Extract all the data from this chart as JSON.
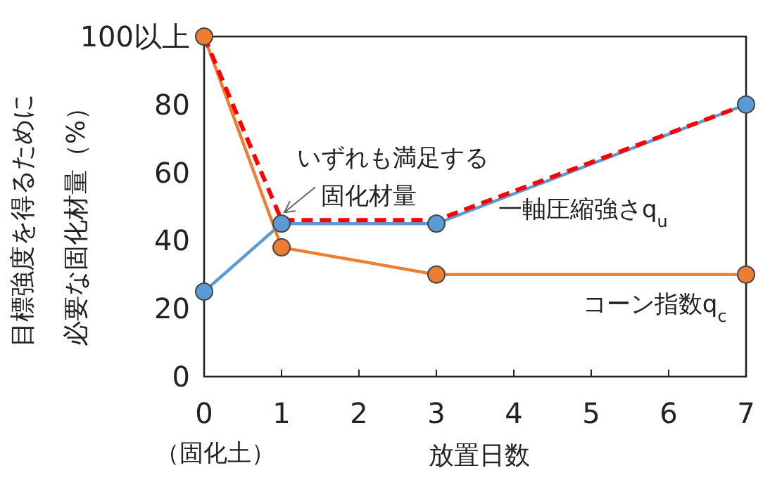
{
  "chart_data": {
    "type": "line",
    "xlabel": "放置日数",
    "ylabel": [
      "目標強度を得るために",
      "必要な固化材量（%）"
    ],
    "x": [
      0,
      1,
      3,
      7
    ],
    "series": [
      {
        "name": "一軸圧縮強さq$_{u}$",
        "color": "#5b9bd5",
        "values": [
          25,
          45,
          45,
          80
        ],
        "marker": "circle",
        "line_style": "solid"
      },
      {
        "name": "コーン指数q$_{c}$",
        "color": "#ed7d31",
        "values": [
          100,
          38,
          30,
          30
        ],
        "marker": "circle",
        "line_style": "solid"
      },
      {
        "name": "いずれも満足する",
        "color": "#ff0000",
        "values": [
          100,
          46,
          46,
          80
        ],
        "marker": "none",
        "line_style": "dashed"
      }
    ],
    "xlim": [
      0,
      7
    ],
    "xticks": [
      0,
      1,
      2,
      3,
      4,
      5,
      6,
      7
    ],
    "ylim": [
      0,
      100
    ],
    "yticks": [
      0,
      20,
      40,
      60,
      80,
      {
        "value": 100,
        "label": "100以上"
      }
    ],
    "annotations": [
      {
        "text": "固化材量",
        "x": 1,
        "y": 45
      },
      "（固化土）"
    ],
    "grid": false
  }
}
